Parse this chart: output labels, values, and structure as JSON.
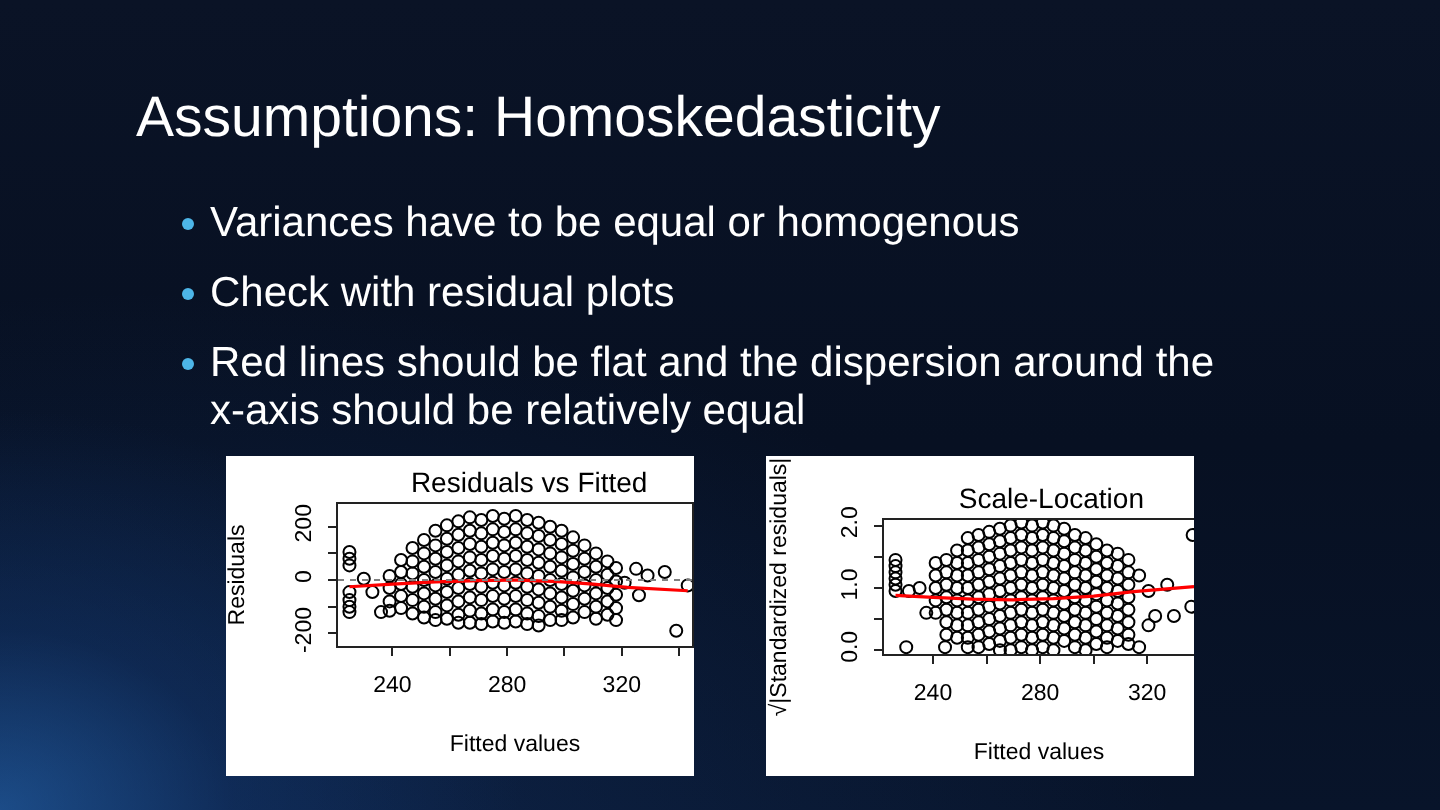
{
  "chart_data": [
    {
      "type": "other",
      "title": "Assumptions: Homoskedasticity",
      "annotations": [
        "Variances have to be equal or homogenous",
        "Check with residual plots",
        "Red lines should be flat and the dispersion around the x-axis should be relatively equal"
      ]
    },
    {
      "type": "scatter",
      "title": "Residuals vs Fitted",
      "xlabel": "Fitted values",
      "ylabel": "Residuals",
      "xlim": [
        221,
        344.5
      ],
      "ylim": [
        -247,
        285
      ],
      "xticks": [
        240,
        {
          "value": 260,
          "label": null
        },
        280,
        {
          "value": 300,
          "label": null
        },
        320,
        {
          "value": 340,
          "label": null
        }
      ],
      "yticks": [
        -200,
        {
          "value": -100,
          "label": null
        },
        0,
        {
          "value": 100,
          "label": null
        },
        200
      ],
      "marker": "circle",
      "ref_lines": [
        {
          "axis": "y",
          "value": 0,
          "color": "#808080",
          "line_style": "dotted"
        }
      ],
      "series": [
        {
          "type": "scatter",
          "color": "#000000",
          "x": [
            225,
            225,
            225,
            225,
            225,
            225,
            225,
            230,
            233,
            236,
            239,
            239,
            239,
            239,
            243,
            243,
            243,
            243,
            243,
            247,
            247,
            247,
            247,
            247,
            247,
            251,
            251,
            251,
            251,
            251,
            251,
            251,
            255,
            255,
            255,
            255,
            255,
            255,
            255,
            255,
            259,
            259,
            259,
            259,
            259,
            259,
            259,
            259,
            263,
            263,
            263,
            263,
            263,
            263,
            263,
            263,
            263,
            267,
            267,
            267,
            267,
            267,
            267,
            267,
            267,
            267,
            271,
            271,
            271,
            271,
            271,
            271,
            271,
            271,
            271,
            275,
            275,
            275,
            275,
            275,
            275,
            275,
            275,
            275,
            279,
            279,
            279,
            279,
            279,
            279,
            279,
            279,
            279,
            283,
            283,
            283,
            283,
            283,
            283,
            283,
            283,
            283,
            287,
            287,
            287,
            287,
            287,
            287,
            287,
            287,
            287,
            291,
            291,
            291,
            291,
            291,
            291,
            291,
            291,
            291,
            295,
            295,
            295,
            295,
            295,
            295,
            295,
            295,
            299,
            299,
            299,
            299,
            299,
            299,
            299,
            299,
            303,
            303,
            303,
            303,
            303,
            303,
            303,
            307,
            307,
            307,
            307,
            307,
            307,
            311,
            311,
            311,
            311,
            311,
            311,
            315,
            315,
            315,
            315,
            315,
            318,
            318,
            318,
            318,
            318,
            325,
            329,
            326,
            335,
            343,
            339,
            321
          ],
          "values": [
            105,
            80,
            55,
            -45,
            -75,
            -100,
            -120,
            5,
            -45,
            -120,
            15,
            -30,
            -80,
            -115,
            75,
            30,
            -15,
            -60,
            -105,
            120,
            70,
            25,
            -25,
            -75,
            -125,
            150,
            100,
            50,
            0,
            -50,
            -100,
            -140,
            185,
            130,
            80,
            30,
            -20,
            -70,
            -120,
            -150,
            205,
            155,
            105,
            55,
            5,
            -45,
            -95,
            -145,
            220,
            170,
            120,
            70,
            20,
            -30,
            -80,
            -130,
            -160,
            235,
            185,
            135,
            85,
            35,
            -15,
            -65,
            -115,
            -160,
            225,
            175,
            125,
            75,
            25,
            -25,
            -75,
            -125,
            -165,
            240,
            190,
            140,
            90,
            40,
            -10,
            -60,
            -110,
            -155,
            230,
            180,
            130,
            80,
            30,
            -20,
            -70,
            -120,
            -160,
            240,
            190,
            140,
            90,
            40,
            -10,
            -60,
            -110,
            -155,
            225,
            175,
            125,
            75,
            25,
            -25,
            -75,
            -125,
            -165,
            215,
            165,
            115,
            65,
            15,
            -35,
            -85,
            -135,
            -170,
            200,
            150,
            100,
            50,
            0,
            -50,
            -100,
            -150,
            185,
            135,
            85,
            35,
            -15,
            -65,
            -115,
            -150,
            160,
            110,
            60,
            10,
            -40,
            -90,
            -140,
            130,
            80,
            30,
            -20,
            -70,
            -120,
            100,
            50,
            0,
            -50,
            -100,
            -145,
            70,
            20,
            -30,
            -80,
            -130,
            45,
            -5,
            -55,
            -105,
            -150,
            42,
            17,
            -57,
            30,
            -20,
            -190,
            -10
          ]
        },
        {
          "type": "line",
          "color": "#ff0000",
          "marker": "none",
          "x": [
            225,
            240,
            255,
            270,
            284,
            298,
            310,
            322,
            343
          ],
          "values": [
            -25,
            -15,
            -7,
            -2,
            0,
            -6,
            -15,
            -27,
            -40
          ]
        }
      ]
    },
    {
      "type": "scatter",
      "title": "Scale-Location",
      "xlabel": "Fitted values",
      "ylabel": "√|Standardized residuals|",
      "xlim": [
        221.7,
        337.5
      ],
      "ylim": [
        -0.06,
        2.09
      ],
      "xticks": [
        240,
        {
          "value": 260,
          "label": null
        },
        280,
        {
          "value": 300,
          "label": null
        },
        320
      ],
      "yticks": [
        {
          "value": 0,
          "label": "0.0"
        },
        {
          "value": 0.5,
          "label": null
        },
        {
          "value": 1,
          "label": "1.0"
        },
        {
          "value": 1.5,
          "label": null
        },
        {
          "value": 2,
          "label": "2.0"
        }
      ],
      "marker": "circle",
      "series": [
        {
          "type": "scatter",
          "color": "#000000",
          "x": [
            226,
            226,
            226,
            226,
            226,
            226,
            230,
            231,
            235,
            237.5,
            244.5,
            241,
            241,
            241,
            241,
            241,
            245,
            245,
            245,
            245,
            245,
            245,
            245,
            249,
            249,
            249,
            249,
            249,
            249,
            249,
            249,
            253,
            253,
            253,
            253,
            253,
            253,
            253,
            253,
            253,
            253,
            257,
            257,
            257,
            257,
            257,
            257,
            257,
            257,
            257,
            257,
            261,
            261,
            261,
            261,
            261,
            261,
            261,
            261,
            261,
            261,
            265,
            265,
            265,
            265,
            265,
            265,
            265,
            265,
            265,
            265,
            265,
            269,
            269,
            269,
            269,
            269,
            269,
            269,
            269,
            269,
            269,
            269,
            273,
            273,
            273,
            273,
            273,
            273,
            273,
            273,
            273,
            273,
            273,
            277,
            277,
            277,
            277,
            277,
            277,
            277,
            277,
            277,
            277,
            277,
            281,
            281,
            281,
            281,
            281,
            281,
            281,
            281,
            281,
            281,
            281,
            285,
            285,
            285,
            285,
            285,
            285,
            285,
            285,
            285,
            285,
            285,
            289,
            289,
            289,
            289,
            289,
            289,
            289,
            289,
            289,
            289,
            293,
            293,
            293,
            293,
            293,
            293,
            293,
            293,
            293,
            293,
            297,
            297,
            297,
            297,
            297,
            297,
            297,
            297,
            297,
            297,
            301,
            301,
            301,
            301,
            301,
            301,
            301,
            301,
            301,
            305,
            305,
            305,
            305,
            305,
            305,
            305,
            305,
            305,
            309,
            309,
            309,
            309,
            309,
            309,
            309,
            309,
            313,
            313,
            313,
            313,
            313,
            313,
            313,
            313,
            317,
            320.5,
            320.5,
            327.5,
            323,
            330,
            336.5,
            337,
            317
          ],
          "values": [
            1.45,
            1.35,
            1.25,
            1.15,
            1.05,
            0.95,
            0.05,
            0.95,
            1,
            0.6,
            0.05,
            1.4,
            1.2,
            1,
            0.8,
            0.6,
            1.45,
            1.25,
            1.05,
            0.85,
            0.65,
            0.45,
            0.25,
            1.6,
            1.4,
            1.2,
            1,
            0.8,
            0.6,
            0.4,
            0.2,
            1.8,
            1.6,
            1.4,
            1.2,
            1,
            0.8,
            0.6,
            0.4,
            0.2,
            0.05,
            1.85,
            1.65,
            1.45,
            1.25,
            1.05,
            0.85,
            0.65,
            0.45,
            0.25,
            0.05,
            1.9,
            1.7,
            1.5,
            1.3,
            1.1,
            0.9,
            0.7,
            0.5,
            0.3,
            0.1,
            1.95,
            1.75,
            1.55,
            1.35,
            1.15,
            0.95,
            0.75,
            0.55,
            0.35,
            0.15,
            0,
            2,
            1.8,
            1.6,
            1.4,
            1.2,
            1,
            0.8,
            0.6,
            0.4,
            0.2,
            0,
            2.05,
            1.85,
            1.65,
            1.45,
            1.25,
            1.05,
            0.85,
            0.65,
            0.45,
            0.25,
            0.05,
            2,
            1.8,
            1.6,
            1.4,
            1.2,
            1,
            0.8,
            0.6,
            0.4,
            0.2,
            0,
            2.05,
            1.85,
            1.65,
            1.45,
            1.25,
            1.05,
            0.85,
            0.65,
            0.45,
            0.25,
            0.05,
            2,
            1.8,
            1.6,
            1.4,
            1.2,
            1,
            0.8,
            0.6,
            0.4,
            0.2,
            0,
            1.95,
            1.75,
            1.55,
            1.35,
            1.15,
            0.95,
            0.75,
            0.55,
            0.35,
            0.15,
            1.85,
            1.65,
            1.45,
            1.25,
            1.05,
            0.85,
            0.65,
            0.45,
            0.25,
            0.05,
            1.8,
            1.6,
            1.4,
            1.2,
            1,
            0.8,
            0.6,
            0.4,
            0.2,
            0,
            1.7,
            1.5,
            1.3,
            1.1,
            0.9,
            0.7,
            0.5,
            0.3,
            0.1,
            1.6,
            1.4,
            1.2,
            1,
            0.8,
            0.6,
            0.4,
            0.2,
            0.05,
            1.55,
            1.35,
            1.15,
            0.95,
            0.75,
            0.55,
            0.35,
            0.15,
            1.45,
            1.25,
            1.05,
            0.85,
            0.65,
            0.45,
            0.25,
            0.1,
            0.05,
            0.4,
            0.95,
            1.05,
            0.55,
            0.55,
            0.7,
            1.85,
            1.2
          ]
        },
        {
          "type": "line",
          "color": "#ff0000",
          "marker": "none",
          "x": [
            226,
            240,
            255,
            270,
            285,
            300,
            315,
            337.5
          ],
          "values": [
            0.88,
            0.85,
            0.82,
            0.81,
            0.83,
            0.87,
            0.94,
            1.02
          ]
        }
      ]
    }
  ]
}
